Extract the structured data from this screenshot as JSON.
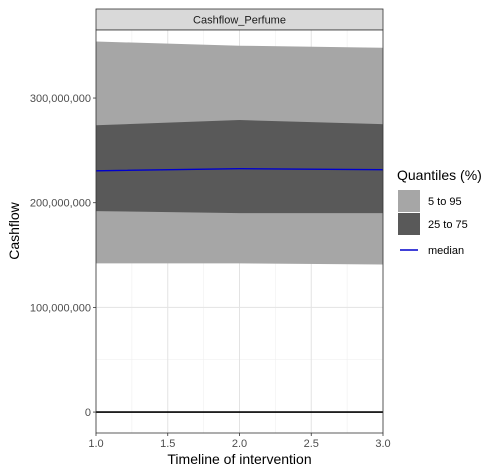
{
  "chart_data": {
    "type": "area",
    "title": "Cashflow_Perfume",
    "xlabel": "Timeline of intervention",
    "ylabel": "Cashflow",
    "x": [
      1.0,
      2.0,
      3.0
    ],
    "xlim": [
      1.0,
      3.0
    ],
    "ylim": [
      -20000000,
      365000000
    ],
    "x_ticks": [
      1.0,
      1.5,
      2.0,
      2.5,
      3.0
    ],
    "x_tick_labels": [
      "1.0",
      "1.5",
      "2.0",
      "2.5",
      "3.0"
    ],
    "y_ticks": [
      0,
      100000000,
      200000000,
      300000000
    ],
    "y_tick_labels": [
      "0",
      "100,000,000",
      "200,000,000",
      "300,000,000"
    ],
    "grid": true,
    "legend_position": "right",
    "legend_title": "Quantiles (%)",
    "bands": [
      {
        "name": "5 to 95",
        "lower": [
          142000000,
          142000000,
          141000000
        ],
        "upper": [
          354000000,
          350000000,
          348000000
        ],
        "color": "#a6a6a6"
      },
      {
        "name": "25 to 75",
        "lower": [
          192000000,
          190000000,
          190000000
        ],
        "upper": [
          274000000,
          279000000,
          275000000
        ],
        "color": "#595959"
      }
    ],
    "median": {
      "name": "median",
      "values": [
        230500000,
        232500000,
        231500000
      ],
      "color": "#0000cc"
    },
    "reference_line": {
      "y": 0,
      "color": "#000000"
    }
  }
}
